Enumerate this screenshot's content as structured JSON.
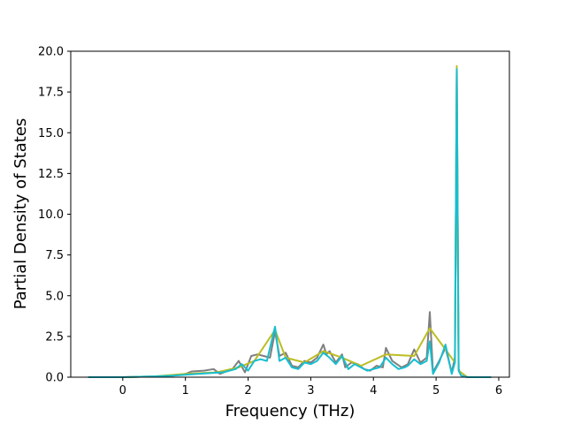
{
  "chart_data": {
    "type": "line",
    "title": "",
    "xlabel": "Frequency (THz)",
    "ylabel": "Partial Density of States",
    "xlim": [
      -0.83,
      6.17
    ],
    "ylim": [
      0,
      20
    ],
    "xticks": [
      0,
      1,
      2,
      3,
      4,
      5,
      6
    ],
    "yticks": [
      0.0,
      2.5,
      5.0,
      7.5,
      10.0,
      12.5,
      15.0,
      17.5,
      20.0
    ],
    "grid": false,
    "legend": "none",
    "series": [
      {
        "color": "#7f7f7f",
        "x": [
          -0.55,
          0.0,
          0.5,
          0.8,
          1.0,
          1.1,
          1.3,
          1.45,
          1.55,
          1.75,
          1.85,
          1.95,
          2.05,
          2.15,
          2.25,
          2.35,
          2.43,
          2.5,
          2.6,
          2.7,
          2.8,
          2.9,
          3.0,
          3.1,
          3.2,
          3.25,
          3.3,
          3.4,
          3.5,
          3.55,
          3.65,
          3.75,
          3.85,
          3.95,
          4.05,
          4.15,
          4.2,
          4.3,
          4.45,
          4.55,
          4.65,
          4.75,
          4.85,
          4.9,
          4.95,
          5.05,
          5.15,
          5.25,
          5.3,
          5.33,
          5.36,
          5.4,
          5.5,
          5.88
        ],
        "y": [
          0,
          0,
          0.05,
          0.1,
          0.2,
          0.35,
          0.4,
          0.5,
          0.2,
          0.5,
          1.0,
          0.3,
          1.3,
          1.4,
          1.3,
          1.2,
          2.8,
          1.3,
          1.5,
          0.7,
          0.6,
          1.0,
          0.9,
          1.2,
          2.0,
          1.4,
          1.6,
          0.9,
          1.4,
          0.6,
          0.9,
          0.8,
          0.5,
          0.4,
          0.7,
          0.6,
          1.8,
          1.0,
          0.6,
          0.8,
          1.7,
          0.9,
          1.2,
          4.0,
          0.3,
          1.0,
          1.8,
          0.3,
          1.2,
          18.8,
          0.5,
          0.1,
          0,
          0
        ]
      },
      {
        "color": "#bcbd22",
        "x": [
          -0.55,
          0.0,
          0.5,
          1.0,
          1.5,
          1.85,
          2.1,
          2.43,
          2.6,
          2.9,
          3.2,
          3.5,
          3.8,
          4.2,
          4.65,
          4.9,
          5.15,
          5.3,
          5.33,
          5.36,
          5.5,
          5.88
        ],
        "y": [
          0,
          0,
          0.05,
          0.2,
          0.3,
          0.6,
          1.0,
          2.9,
          1.2,
          0.9,
          1.6,
          1.2,
          0.7,
          1.4,
          1.3,
          3.0,
          1.7,
          0.9,
          19.1,
          0.4,
          0,
          0
        ]
      },
      {
        "color": "#17becf",
        "x": [
          -0.55,
          0.0,
          0.5,
          0.8,
          1.0,
          1.2,
          1.4,
          1.6,
          1.8,
          1.9,
          2.0,
          2.1,
          2.2,
          2.3,
          2.43,
          2.5,
          2.6,
          2.7,
          2.8,
          2.9,
          3.0,
          3.1,
          3.2,
          3.3,
          3.4,
          3.5,
          3.6,
          3.7,
          3.8,
          3.9,
          4.0,
          4.1,
          4.2,
          4.3,
          4.4,
          4.5,
          4.55,
          4.65,
          4.75,
          4.85,
          4.9,
          4.95,
          5.05,
          5.15,
          5.25,
          5.3,
          5.33,
          5.36,
          5.4,
          5.5,
          5.88
        ],
        "y": [
          0,
          0,
          0.05,
          0.1,
          0.15,
          0.2,
          0.25,
          0.3,
          0.5,
          0.8,
          0.4,
          1.0,
          1.1,
          1.0,
          3.1,
          1.0,
          1.2,
          0.6,
          0.5,
          0.9,
          0.8,
          1.0,
          1.5,
          1.2,
          0.8,
          1.3,
          0.5,
          0.8,
          0.6,
          0.4,
          0.5,
          0.6,
          1.2,
          0.8,
          0.5,
          0.6,
          0.7,
          1.1,
          0.8,
          1.0,
          2.2,
          0.2,
          0.9,
          2.0,
          0.2,
          0.9,
          18.9,
          0.4,
          0.1,
          0,
          0
        ]
      }
    ]
  }
}
